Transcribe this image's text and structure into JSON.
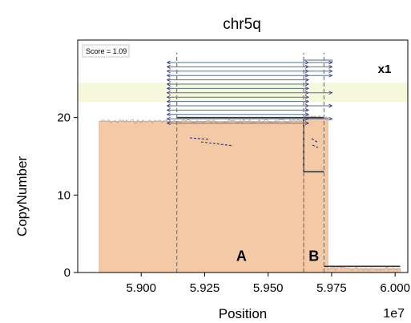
{
  "chart_data": {
    "type": "area",
    "title": "chr5q",
    "xlabel": "Position",
    "ylabel": "CopyNumber",
    "x_offset_label": "1e7",
    "score_label": "Score = 1.09",
    "corner_label": "x1",
    "xlim": [
      5.875,
      6.005
    ],
    "ylim": [
      0,
      30
    ],
    "x_ticks": [
      5.9,
      5.925,
      5.95,
      5.975,
      6.0
    ],
    "x_tick_labels": [
      "5.900",
      "5.925",
      "5.950",
      "5.975",
      "6.000"
    ],
    "y_ticks": [
      0,
      10,
      20
    ],
    "y_tick_labels": [
      "0",
      "10",
      "20"
    ],
    "colors": {
      "fill": "#f3c9a6",
      "fill_edge": "#e8a77c",
      "noise": "#b9a79a",
      "segment": "#333333",
      "band": "#f6f8dc",
      "dashed": "#808080",
      "sv_line": "#5a6f8a",
      "sv_arrow": "#2a2a8a"
    },
    "coverage_area": [
      {
        "x0": 5.8835,
        "x1": 5.964,
        "y": 19.5
      },
      {
        "x0": 5.964,
        "x1": 5.9735,
        "y": 20.0
      },
      {
        "x0": 5.9735,
        "x1": 6.002,
        "y": 0.5
      }
    ],
    "segments": [
      {
        "x0": 5.914,
        "x1": 5.964,
        "y": 20.0
      },
      {
        "x0": 5.964,
        "x1": 5.972,
        "y": 20.0
      },
      {
        "x0": 5.964,
        "x1": 5.972,
        "y": 13.0
      },
      {
        "x0": 5.972,
        "x1": 6.002,
        "y": 0.8
      }
    ],
    "band": [
      22.0,
      24.5
    ],
    "breakpoints": [
      5.914,
      5.964,
      5.972
    ],
    "region_labels": [
      {
        "label": "A",
        "x": 5.9395,
        "y": 1.5
      },
      {
        "label": "B",
        "x": 5.968,
        "y": 1.5
      }
    ]
  }
}
